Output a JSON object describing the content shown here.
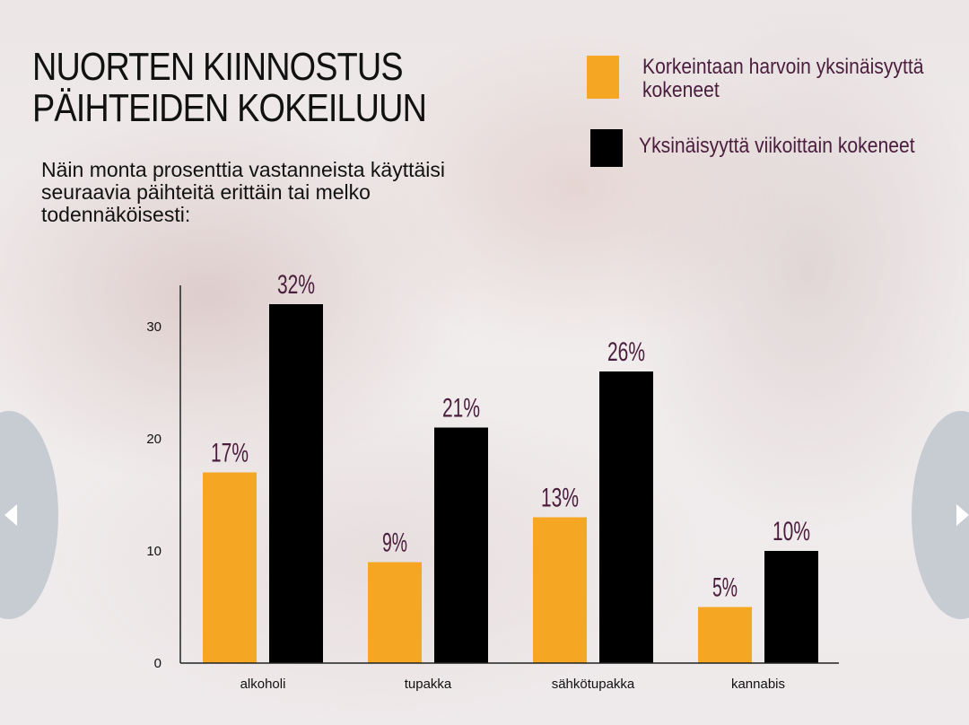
{
  "title_lines": [
    "NUORTEN KIINNOSTUS",
    "PÄIHTEIDEN KOKEILUUN"
  ],
  "subtitle_lines": [
    "Näin monta prosenttia vastanneista käyttäisi",
    "seuraavia päihteitä erittäin tai melko",
    "todennäköisesti:"
  ],
  "legend": [
    {
      "label_lines": [
        "Korkeintaan harvoin  yksinäisyyttä",
        "kokeneet"
      ],
      "color": "#f5a623"
    },
    {
      "label_lines": [
        "Yksinäisyyttä viikoittain kokeneet"
      ],
      "color": "#000000"
    }
  ],
  "nav": {
    "prev_icon": "chevron-left-icon",
    "next_icon": "chevron-right-icon"
  },
  "chart_data": {
    "type": "bar",
    "categories": [
      "alkoholi",
      "tupakka",
      "sähkötupakka",
      "kannabis"
    ],
    "series": [
      {
        "name": "Korkeintaan harvoin  yksinäisyyttä kokeneet",
        "values": [
          17,
          9,
          13,
          5
        ],
        "color": "#f5a623",
        "labels": [
          "17%",
          "9%",
          "13%",
          "5%"
        ]
      },
      {
        "name": "Yksinäisyyttä viikoittain kokeneet",
        "values": [
          32,
          21,
          26,
          10
        ],
        "color": "#000000",
        "labels": [
          "32%",
          "21%",
          "26%",
          "10%"
        ]
      }
    ],
    "yticks": [
      0,
      10,
      20,
      30
    ],
    "ylim": [
      0,
      32
    ],
    "xlabel": "",
    "ylabel": "",
    "grid": false,
    "legend_position": "top-right",
    "data_label_color": "#4a1d3d"
  }
}
